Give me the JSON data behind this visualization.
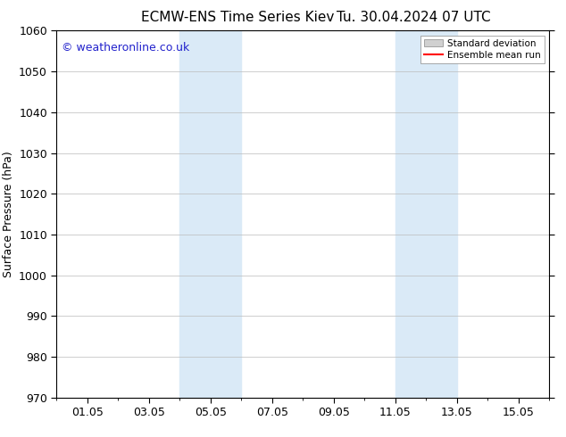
{
  "title_left": "ECMW-ENS Time Series Kiev",
  "title_right": "Tu. 30.04.2024 07 UTC",
  "ylabel": "Surface Pressure (hPa)",
  "ylim": [
    970,
    1060
  ],
  "yticks": [
    970,
    980,
    990,
    1000,
    1010,
    1020,
    1030,
    1040,
    1050,
    1060
  ],
  "xtick_labels": [
    "01.05",
    "03.05",
    "05.05",
    "07.05",
    "09.05",
    "11.05",
    "13.05",
    "15.05"
  ],
  "xtick_positions": [
    1,
    3,
    5,
    7,
    9,
    11,
    13,
    15
  ],
  "xlim": [
    0.0,
    16.0
  ],
  "shaded_regions": [
    {
      "start": 4.0,
      "end": 6.0,
      "color": "#daeaf7"
    },
    {
      "start": 11.0,
      "end": 13.0,
      "color": "#daeaf7"
    }
  ],
  "watermark_text": "© weatheronline.co.uk",
  "watermark_color": "#2222cc",
  "legend_items": [
    {
      "label": "Standard deviation",
      "color": "#d0d0d0",
      "type": "patch"
    },
    {
      "label": "Ensemble mean run",
      "color": "#ff0000",
      "lw": 1.5,
      "type": "line"
    }
  ],
  "background_color": "#ffffff",
  "grid_color": "#bbbbbb",
  "title_fontsize": 11,
  "tick_fontsize": 9,
  "ylabel_fontsize": 9,
  "watermark_fontsize": 9
}
